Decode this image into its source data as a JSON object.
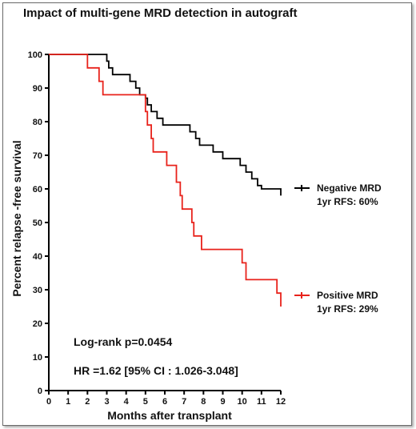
{
  "chart_data": {
    "type": "line",
    "subtype": "kaplan-meier",
    "title": "Impact of multi-gene MRD detection in autograft",
    "xlabel": "Months after transplant",
    "ylabel": "Percent relapse -free survival",
    "xlim": [
      0,
      12
    ],
    "ylim": [
      0,
      100
    ],
    "xticks": [
      0,
      1,
      2,
      3,
      4,
      5,
      6,
      7,
      8,
      9,
      10,
      11,
      12
    ],
    "yticks": [
      0,
      10,
      20,
      30,
      40,
      50,
      60,
      70,
      80,
      90,
      100
    ],
    "grid": false,
    "series": [
      {
        "name": "Negative MRD",
        "color": "#000000",
        "legend_line2": "1yr RFS: 60%",
        "steps": [
          [
            0,
            100
          ],
          [
            3.0,
            98
          ],
          [
            3.1,
            96
          ],
          [
            3.3,
            94
          ],
          [
            4.2,
            92
          ],
          [
            4.5,
            90
          ],
          [
            4.7,
            88
          ],
          [
            5.0,
            87
          ],
          [
            5.1,
            85
          ],
          [
            5.3,
            83
          ],
          [
            5.6,
            81
          ],
          [
            5.9,
            79
          ],
          [
            7.3,
            77
          ],
          [
            7.6,
            75
          ],
          [
            7.8,
            73
          ],
          [
            8.5,
            71
          ],
          [
            9.0,
            69
          ],
          [
            9.9,
            67
          ],
          [
            10.2,
            65
          ],
          [
            10.5,
            63
          ],
          [
            10.8,
            61
          ],
          [
            11.0,
            60
          ],
          [
            12.0,
            58
          ]
        ]
      },
      {
        "name": "Positive MRD",
        "color": "#e8221b",
        "legend_line2": "1yr RFS: 29%",
        "steps": [
          [
            0,
            100
          ],
          [
            2.0,
            96
          ],
          [
            2.6,
            92
          ],
          [
            2.8,
            88
          ],
          [
            5.0,
            83
          ],
          [
            5.1,
            79
          ],
          [
            5.3,
            75
          ],
          [
            5.4,
            71
          ],
          [
            6.1,
            67
          ],
          [
            6.6,
            62
          ],
          [
            6.8,
            58
          ],
          [
            6.9,
            54
          ],
          [
            7.4,
            50
          ],
          [
            7.5,
            46
          ],
          [
            7.9,
            42
          ],
          [
            10.0,
            38
          ],
          [
            10.2,
            33
          ],
          [
            11.8,
            29
          ],
          [
            12.0,
            25
          ]
        ]
      }
    ],
    "annotations": [
      "Log-rank p=0.0454",
      "HR =1.62 [95% CI : 1.026-3.048]"
    ]
  }
}
